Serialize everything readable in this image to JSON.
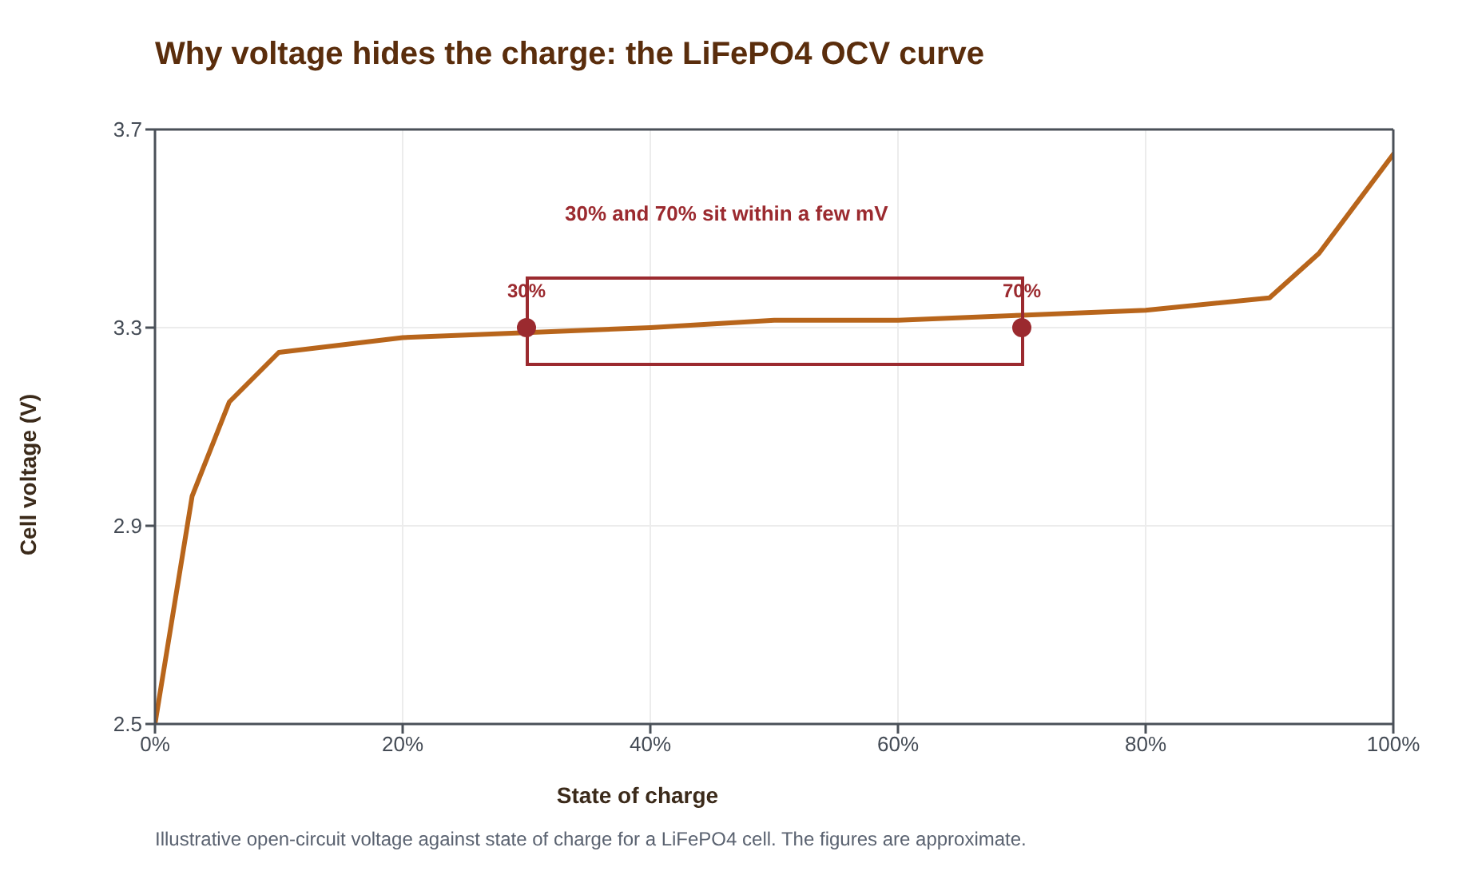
{
  "chart_data": {
    "type": "line",
    "title": "Why voltage hides the charge: the LiFePO4 OCV curve",
    "xlabel": "State of charge",
    "ylabel": "Cell voltage (V)",
    "x": [
      0,
      3,
      6,
      10,
      20,
      30,
      40,
      50,
      60,
      70,
      80,
      90,
      94,
      100
    ],
    "series": [
      {
        "color": "#b8651b",
        "values": [
          2.5,
          2.96,
          3.15,
          3.25,
          3.28,
          3.29,
          3.3,
          3.315,
          3.315,
          3.325,
          3.335,
          3.36,
          3.45,
          3.65
        ]
      },
      {
        "type": "scatter",
        "color": "#9b2a2f",
        "marker": "circle",
        "x": [
          30,
          70
        ],
        "values": [
          3.3,
          3.3
        ]
      }
    ],
    "xlim": [
      0,
      100
    ],
    "xticks": [
      {
        "value": 0,
        "label": "0%"
      },
      {
        "value": 20,
        "label": "20%"
      },
      {
        "value": 40,
        "label": "40%"
      },
      {
        "value": 60,
        "label": "60%"
      },
      {
        "value": 80,
        "label": "80%"
      },
      {
        "value": 100,
        "label": "100%"
      }
    ],
    "ylim": [
      2.5,
      3.7
    ],
    "yticks": [
      2.5,
      2.9,
      3.3,
      3.7
    ],
    "grid": true,
    "annotations": [
      "30% and 70% sit within a few mV",
      {
        "text": "30%",
        "x": 30,
        "y": 3.3
      },
      {
        "text": "70%",
        "x": 70,
        "y": 3.3
      },
      "Illustrative open-circuit voltage against state of charge for a LiFePO4 cell. The figures are approximate."
    ]
  }
}
